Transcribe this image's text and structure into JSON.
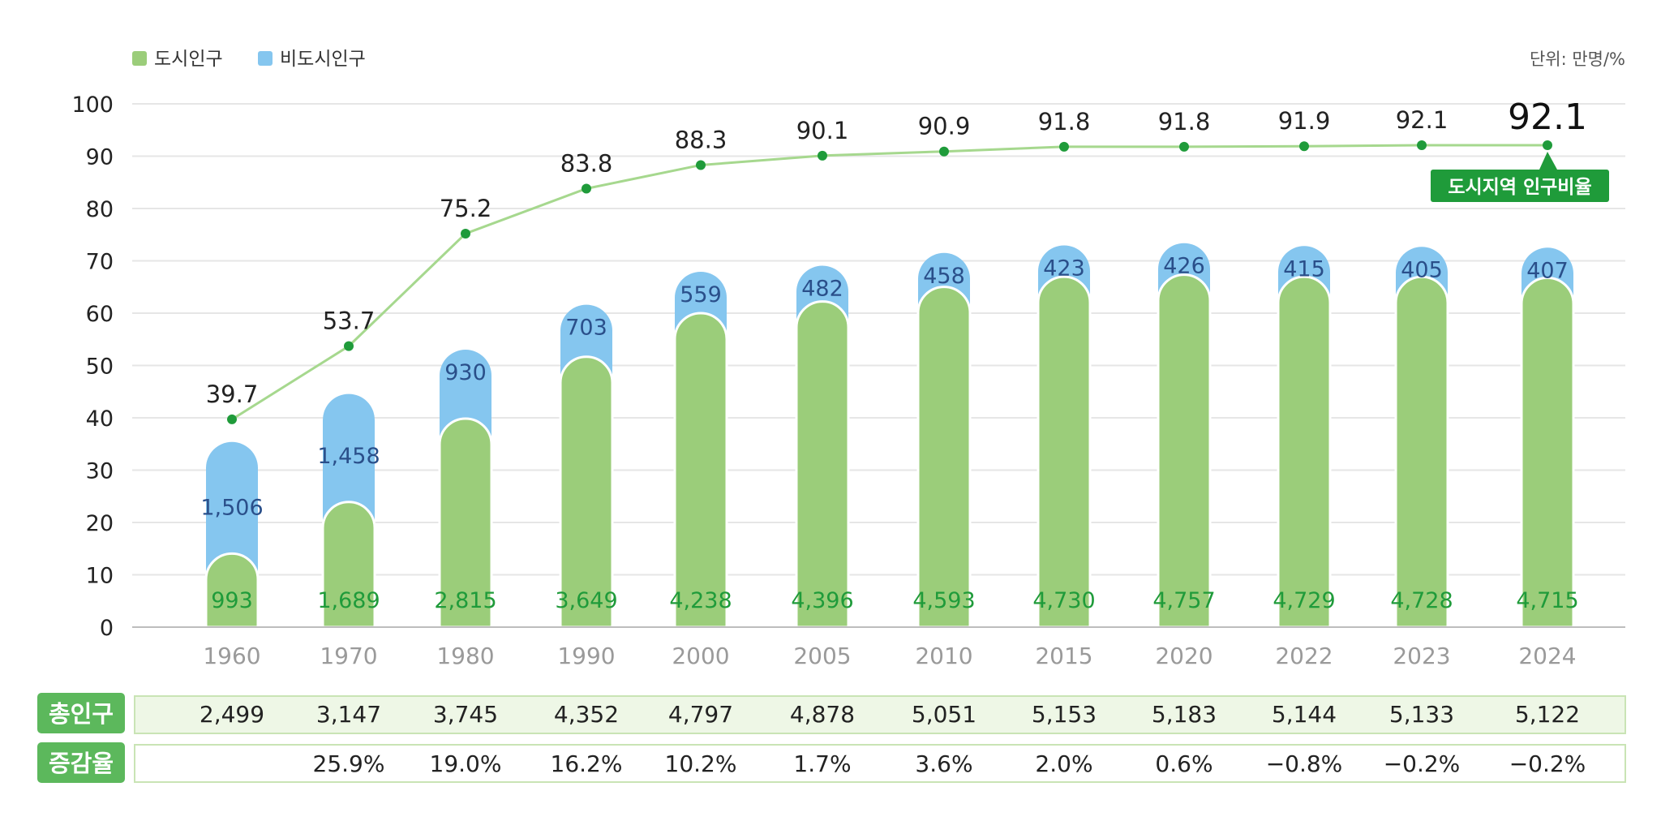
{
  "legend": {
    "urban": "도시인구",
    "nonurban": "비도시인구"
  },
  "unit": "단위: 만명/%",
  "badge": "도시지역 인구비율",
  "colors": {
    "urban": "#9bcd7a",
    "nonurban": "#85c6ef",
    "line": "#a6d88e",
    "point": "#1f9b3a",
    "badge": "#1f9b3a",
    "table_head": "#5cb85c",
    "table_bg": "#eef7e6",
    "grid": "#e6e6e6"
  },
  "table": {
    "total_label": "총인구",
    "change_label": "증감율",
    "total": [
      "2,499",
      "3,147",
      "3,745",
      "4,352",
      "4,797",
      "4,878",
      "5,051",
      "5,153",
      "5,183",
      "5,144",
      "5,133",
      "5,122"
    ],
    "change": [
      "",
      "25.9%",
      "19.0%",
      "16.2%",
      "10.2%",
      "1.7%",
      "3.6%",
      "2.0%",
      "0.6%",
      "−0.8%",
      "−0.2%",
      "−0.2%"
    ]
  },
  "chart_data": {
    "type": "bar",
    "stacked": true,
    "categories": [
      "1960",
      "1970",
      "1980",
      "1990",
      "2000",
      "2005",
      "2010",
      "2015",
      "2020",
      "2022",
      "2023",
      "2024"
    ],
    "ylim": [
      0,
      100
    ],
    "yticks": [
      0,
      10,
      20,
      30,
      40,
      50,
      60,
      70,
      80,
      90,
      100
    ],
    "grid": true,
    "legend_position": "top-left",
    "bar_series": [
      {
        "name": "도시인구",
        "labels": [
          "993",
          "1,689",
          "2,815",
          "3,649",
          "4,238",
          "4,396",
          "4,593",
          "4,730",
          "4,757",
          "4,729",
          "4,728",
          "4,715"
        ],
        "values": [
          993,
          1689,
          2815,
          3649,
          4238,
          4396,
          4593,
          4730,
          4757,
          4729,
          4728,
          4715
        ]
      },
      {
        "name": "비도시인구",
        "labels": [
          "1,506",
          "1,458",
          "930",
          "703",
          "559",
          "482",
          "458",
          "423",
          "426",
          "415",
          "405",
          "407"
        ],
        "values": [
          1506,
          1458,
          930,
          703,
          559,
          482,
          458,
          423,
          426,
          415,
          405,
          407
        ]
      }
    ],
    "line_series": {
      "name": "도시지역 인구비율",
      "labels": [
        "39.7",
        "53.7",
        "75.2",
        "83.8",
        "88.3",
        "90.1",
        "90.9",
        "91.8",
        "91.8",
        "91.9",
        "92.1",
        "92.1"
      ],
      "values": [
        39.7,
        53.7,
        75.2,
        83.8,
        88.3,
        90.1,
        90.9,
        91.8,
        91.8,
        91.9,
        92.1,
        92.1
      ]
    }
  }
}
